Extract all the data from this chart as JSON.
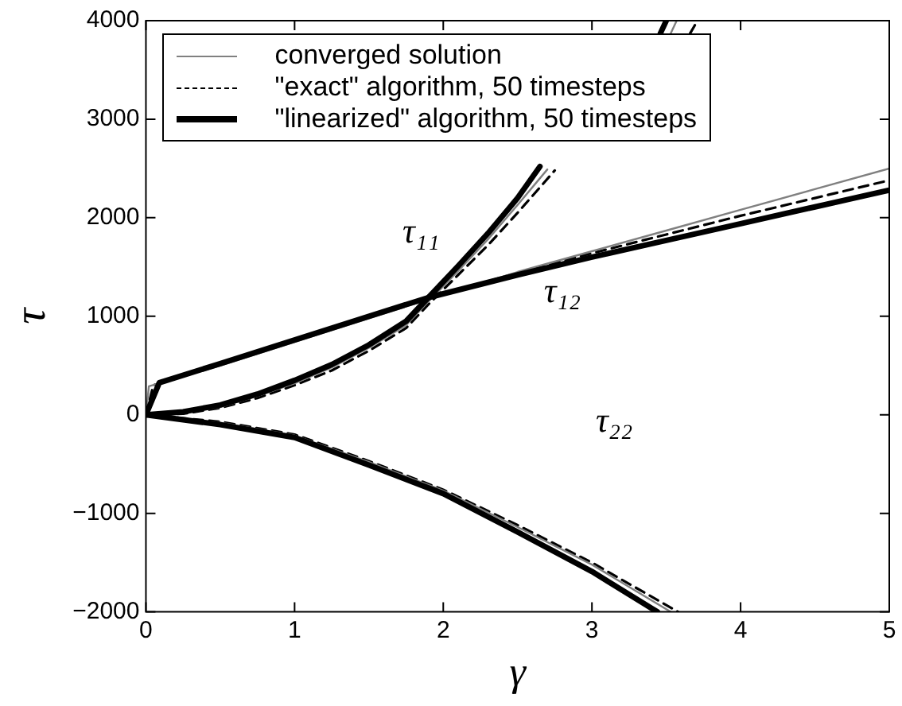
{
  "chart_data": {
    "type": "line",
    "xlabel": "γ",
    "ylabel": "τ",
    "xlim": [
      0,
      5
    ],
    "xticks": [
      0,
      1,
      2,
      3,
      4,
      5
    ],
    "ylim": [
      -2000,
      4000
    ],
    "yticks": [
      -2000,
      -1000,
      0,
      1000,
      2000,
      3000,
      4000
    ],
    "grid": false,
    "legend": "top left",
    "series": [
      {
        "name": "converged solution",
        "color": "#808080",
        "line_style": "solid",
        "x": [
          0,
          0.25,
          0.5,
          0.75,
          1,
          1.25,
          1.5,
          1.75,
          1.9,
          2.1,
          2.3,
          2.5,
          2.7,
          3.0,
          3.53,
          3.57
        ],
        "values": [
          0,
          20,
          80,
          190,
          320,
          480,
          680,
          910,
          1150,
          1460,
          1780,
          2130,
          2490,
          null,
          3870,
          4000
        ]
      },
      {
        "name": "\"exact\" algorithm, 50 timesteps",
        "color": "#000000",
        "line_style": "dashed",
        "x": [
          0,
          0.25,
          0.5,
          0.75,
          1,
          1.25,
          1.5,
          1.75,
          1.9,
          2.1,
          2.3,
          2.5,
          2.75,
          3.0,
          3.66,
          3.71
        ],
        "values": [
          0,
          10,
          70,
          170,
          300,
          450,
          650,
          880,
          1120,
          1420,
          1720,
          2050,
          2480,
          null,
          3870,
          4000
        ]
      },
      {
        "name": "\"linearized\" algorithm, 50 timesteps",
        "color": "#000000",
        "line_style": "solid",
        "x": [
          0,
          0.25,
          0.5,
          0.75,
          1,
          1.25,
          1.5,
          1.75,
          1.9,
          2.1,
          2.3,
          2.5,
          2.65,
          3.0,
          3.46,
          3.5
        ],
        "values": [
          0,
          30,
          100,
          210,
          350,
          510,
          710,
          950,
          1190,
          1510,
          1840,
          2200,
          2520,
          null,
          3870,
          4000
        ]
      },
      {
        "color": "#808080",
        "line_style": "solid",
        "x": [
          0,
          0.02,
          0.5,
          1,
          1.5,
          1.9,
          2.5,
          3,
          3.5,
          4,
          4.5,
          5
        ],
        "values": [
          0,
          290,
          500,
          740,
          980,
          1170,
          1450,
          1660,
          1870,
          2080,
          2290,
          2500
        ]
      },
      {
        "color": "#000000",
        "line_style": "dashed",
        "x": [
          0,
          0.05,
          0.5,
          1,
          1.5,
          1.9,
          2.5,
          3,
          3.5,
          4,
          4.5,
          5
        ],
        "values": [
          0,
          300,
          510,
          750,
          990,
          1180,
          1440,
          1640,
          1830,
          2020,
          2200,
          2380
        ]
      },
      {
        "color": "#000000",
        "line_style": "solid",
        "x": [
          0,
          0.09,
          0.5,
          1,
          1.5,
          1.9,
          2.5,
          3,
          3.5,
          4,
          4.5,
          5
        ],
        "values": [
          0,
          325,
          520,
          760,
          1000,
          1190,
          1420,
          1600,
          1770,
          1940,
          2110,
          2280
        ]
      },
      {
        "color": "#808080",
        "line_style": "solid",
        "x": [
          0,
          0.5,
          1,
          1.5,
          2,
          2.5,
          3,
          3.53
        ],
        "values": [
          0,
          -80,
          -210,
          -480,
          -770,
          -1140,
          -1520,
          -2000
        ]
      },
      {
        "color": "#000000",
        "line_style": "dashed",
        "x": [
          0,
          0.5,
          1,
          1.5,
          2,
          2.5,
          3,
          3.58
        ],
        "values": [
          0,
          -70,
          -200,
          -470,
          -760,
          -1120,
          -1500,
          -2000
        ]
      },
      {
        "color": "#000000",
        "line_style": "solid",
        "x": [
          0,
          0.5,
          1,
          1.5,
          2,
          2.5,
          3,
          3.44
        ],
        "values": [
          0,
          -100,
          -230,
          -510,
          -800,
          -1190,
          -1590,
          -2000
        ]
      }
    ],
    "annotations": [
      "τ₁₁",
      "τ₁₂",
      "τ₂₂"
    ]
  }
}
